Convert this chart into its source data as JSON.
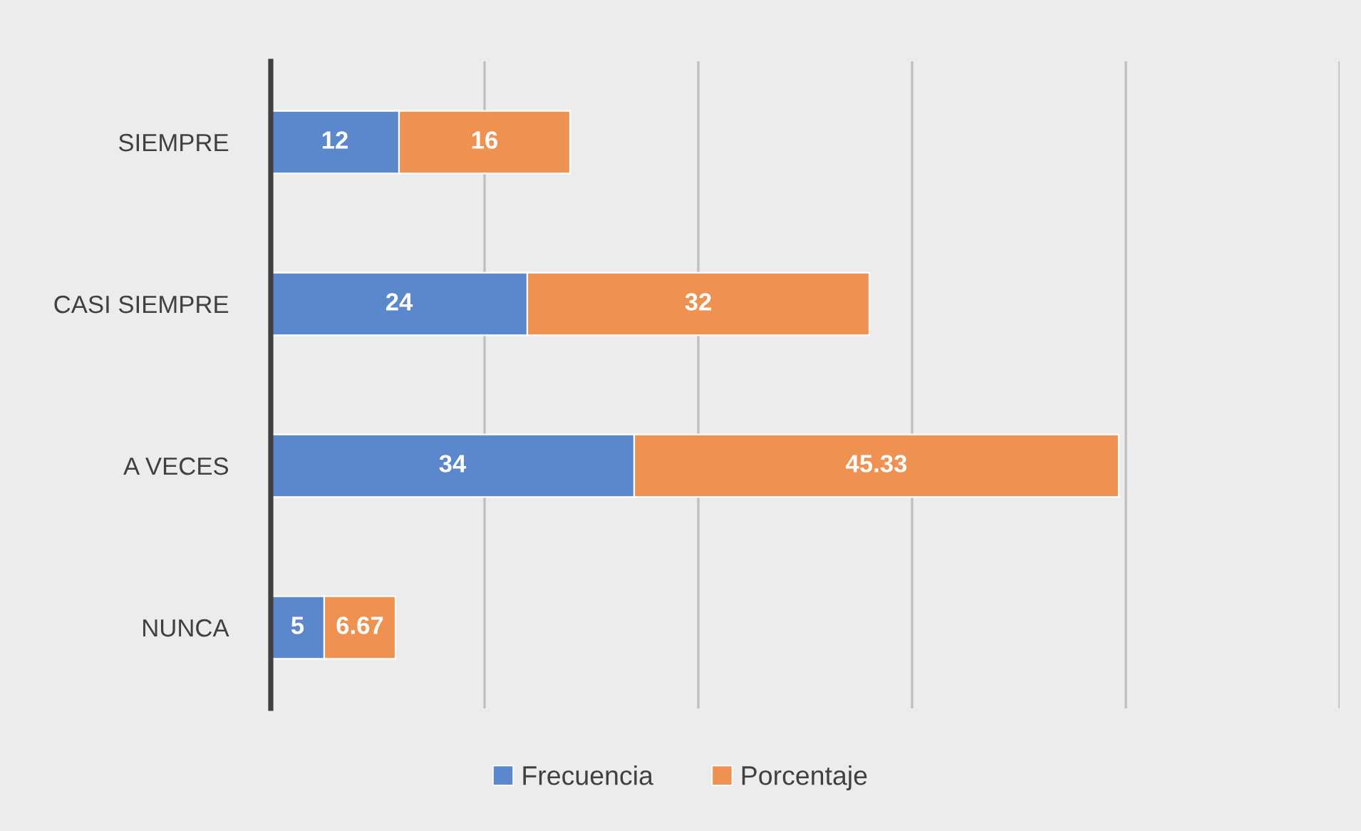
{
  "chart_data": {
    "type": "bar",
    "orientation": "horizontal",
    "stacked": true,
    "categories": [
      "SIEMPRE",
      "CASI SIEMPRE",
      "A VECES",
      "NUNCA"
    ],
    "series": [
      {
        "name": "Frecuencia",
        "color": "#5b87cc",
        "values": [
          12,
          24,
          34,
          5
        ]
      },
      {
        "name": "Porcentaje",
        "color": "#ef9150",
        "values": [
          16,
          32,
          45.33,
          6.67
        ]
      }
    ],
    "xlim": [
      0,
      100
    ],
    "xticks": [
      {
        "value": 0,
        "label": null
      },
      {
        "value": 20,
        "label": null
      },
      {
        "value": 40,
        "label": null
      },
      {
        "value": 60,
        "label": null
      },
      {
        "value": 80,
        "label": null
      },
      {
        "value": 100,
        "label": null
      }
    ],
    "tick_labels": "y",
    "grid": "x",
    "legend": "bottom",
    "data_labels": true
  }
}
